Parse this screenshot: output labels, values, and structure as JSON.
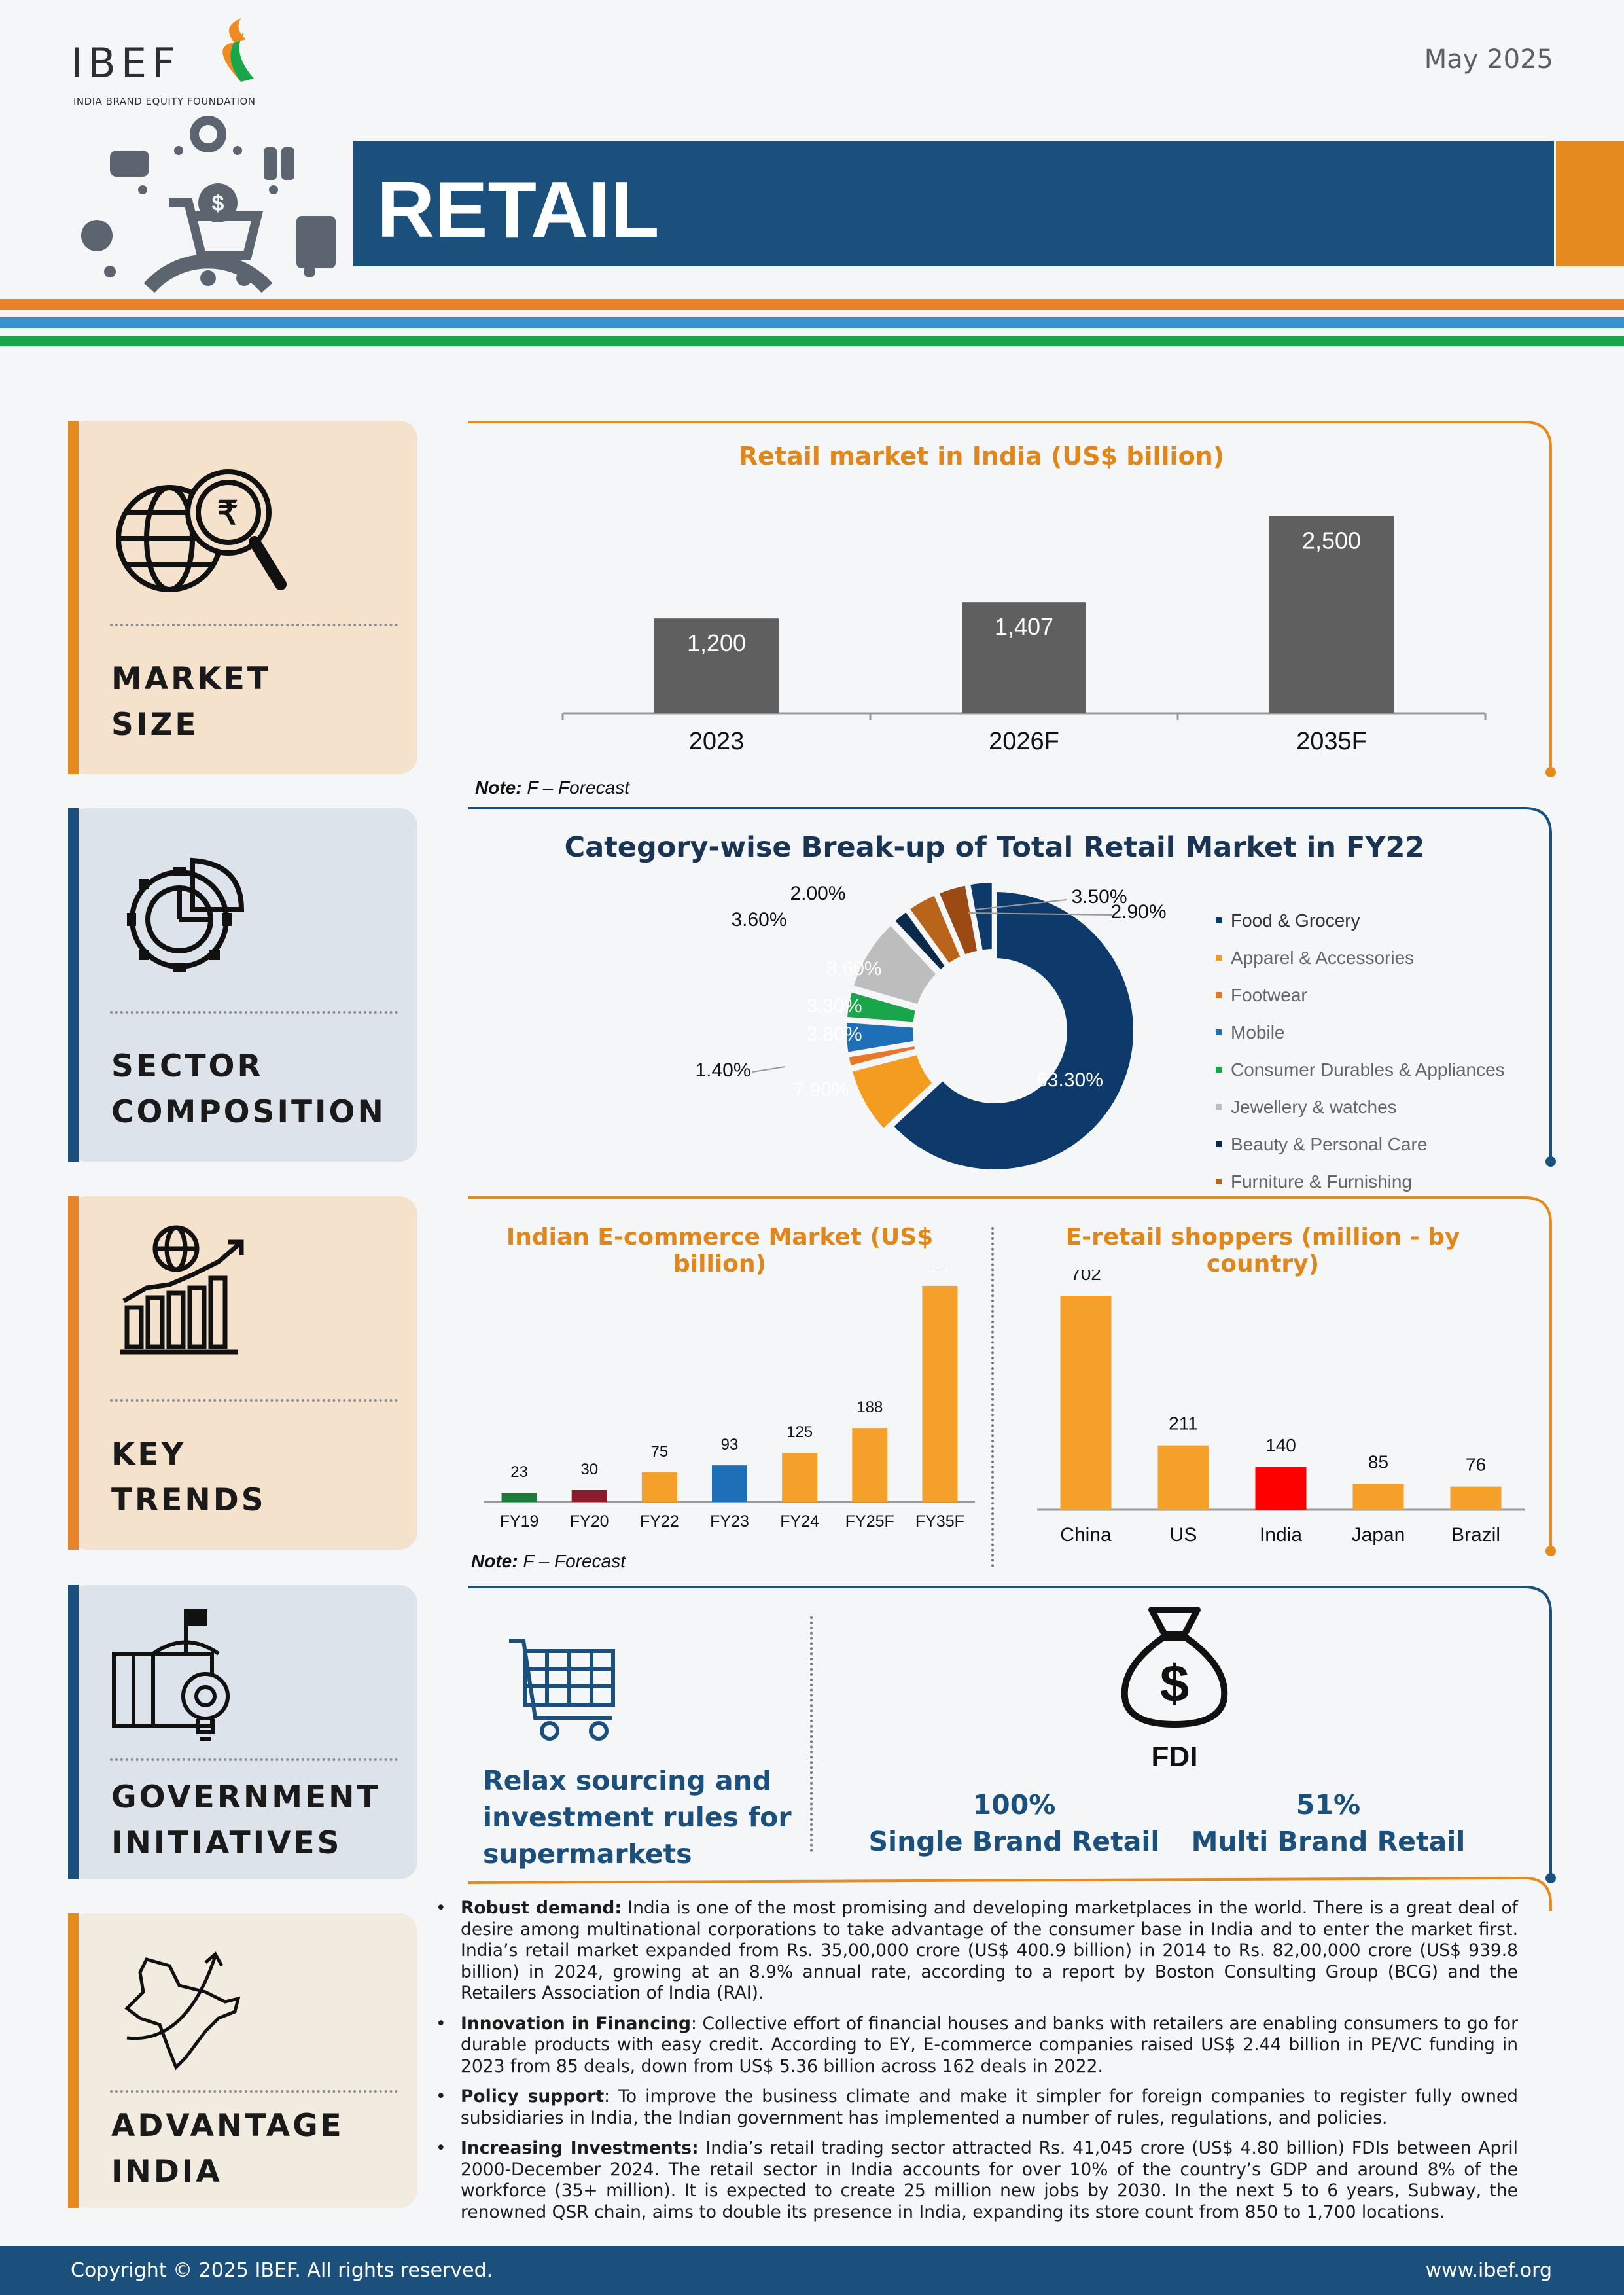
{
  "header": {
    "logo_text": "IBEF",
    "logo_subtitle": "INDIA BRAND EQUITY FOUNDATION",
    "date": "May 2025",
    "title": "RETAIL"
  },
  "sections": {
    "market_size": {
      "label_line1": "MARKET",
      "label_line2": "SIZE"
    },
    "sector_composition": {
      "label_line1": "SECTOR",
      "label_line2": "COMPOSITION"
    },
    "key_trends": {
      "label_line1": "KEY",
      "label_line2": "TRENDS"
    },
    "government_initiatives": {
      "label_line1": "GOVERNMENT",
      "label_line2": "INITIATIVES"
    },
    "advantage_india": {
      "label_line1": "ADVANTAGE",
      "label_line2": "INDIA"
    }
  },
  "notes": {
    "market_note_bold": "Note:",
    "market_note_text": "F – Forecast",
    "ecommerce_note_bold": "Note:",
    "ecommerce_note_text": "F – Forecast"
  },
  "chart_data": [
    {
      "type": "bar",
      "title": "Retail market in India (US$ billion)",
      "categories": [
        "2023",
        "2026F",
        "2035F"
      ],
      "values": [
        1200,
        1407,
        2500
      ],
      "value_labels": [
        "1,200",
        "1,407",
        "2,500"
      ],
      "colors": [
        "#5f5f5f",
        "#5f5f5f",
        "#5f5f5f"
      ],
      "ylim": [
        0,
        2900
      ]
    },
    {
      "type": "pie",
      "title": "Category-wise Break-up of Total Retail Market in FY22",
      "legend": [
        "Food & Grocery",
        "Apparel & Accessories",
        "Footwear",
        "Mobile",
        "Consumer Durables & Appliances",
        "Jewellery & watches",
        "Beauty & Personal Care",
        "Furniture & Furnishing"
      ],
      "slices": [
        {
          "name": "Food & Grocery",
          "value": 63.3,
          "label": "63.30%",
          "color": "#0d3a6b"
        },
        {
          "name": "Apparel & Accessories",
          "value": 7.9,
          "label": "7.90%",
          "color": "#f39c1f"
        },
        {
          "name": "Footwear",
          "value": 1.4,
          "label": "1.40%",
          "color": "#e8772e"
        },
        {
          "name": "Mobile",
          "value": 3.8,
          "label": "3.80%",
          "color": "#1f6fb8"
        },
        {
          "name": "Consumer Durables & Appliances",
          "value": 3.3,
          "label": "3.30%",
          "color": "#19a64a"
        },
        {
          "name": "Jewellery & watches",
          "value": 8.6,
          "label": "8.60%",
          "color": "#bdbdbd"
        },
        {
          "name": "Beauty & Personal Care",
          "value": 2.0,
          "label": "2.00%",
          "color": "#0b2a4a"
        },
        {
          "name": "Furniture & Furnishing",
          "value": 3.6,
          "label": "3.60%",
          "color": "#b8641a"
        },
        {
          "name": "",
          "value": 3.5,
          "label": "3.50%",
          "color": "#9a4a12"
        },
        {
          "name": "",
          "value": 2.9,
          "label": "2.90%",
          "color": "#0d3a6b"
        }
      ]
    },
    {
      "type": "bar",
      "title": "Indian E-commerce Market (US$ billion)",
      "categories": [
        "FY19",
        "FY20",
        "FY22",
        "FY23",
        "FY24",
        "FY25F",
        "FY35F"
      ],
      "values": [
        23,
        30,
        75,
        93,
        125,
        188,
        550
      ],
      "colors": [
        "#1e7a3a",
        "#8b1a2b",
        "#f5a02a",
        "#1f6fb8",
        "#f5a02a",
        "#f5a02a",
        "#f5a02a"
      ],
      "ylim": [
        0,
        600
      ]
    },
    {
      "type": "bar",
      "title": "E-retail shoppers (million - by country)",
      "categories": [
        "China",
        "US",
        "India",
        "Japan",
        "Brazil"
      ],
      "values": [
        702,
        211,
        140,
        85,
        76
      ],
      "colors": [
        "#f5a02a",
        "#f5a02a",
        "#ff0000",
        "#f5a02a",
        "#f5a02a"
      ],
      "ylim": [
        0,
        800
      ]
    }
  ],
  "government": {
    "left_text": [
      "Relax sourcing and",
      "investment rules for",
      "supermarkets"
    ],
    "fdi_label": "FDI",
    "single_pct": "100%",
    "single_label": "Single Brand Retail",
    "multi_pct": "51%",
    "multi_label": "Multi Brand Retail"
  },
  "advantage": [
    {
      "bold": "Robust demand:",
      "text": " India is one of the most promising and developing marketplaces in the world. There is a great deal of desire among multinational corporations to take advantage of the consumer base in India and to enter the market first. India’s retail market expanded from Rs. 35,00,000 crore (US$ 400.9 billion) in 2014 to Rs. 82,00,000 crore (US$ 939.8 billion) in 2024, growing at an 8.9% annual rate, according to a report by Boston Consulting Group (BCG) and the Retailers Association of India (RAI)."
    },
    {
      "bold": "Innovation in Financing",
      "text": ": Collective effort of financial houses and banks with retailers are enabling consumers to go for durable products with easy credit. According to EY, E-commerce companies raised US$ 2.44 billion in PE/VC funding in 2023 from 85 deals, down from US$ 5.36 billion across 162 deals in 2022."
    },
    {
      "bold": "Policy support",
      "text": ": To improve the business climate and make it simpler for foreign companies to register fully owned subsidiaries in India, the Indian government has implemented a number of rules, regulations, and policies."
    },
    {
      "bold": "Increasing Investments:",
      "text": " India’s retail trading sector attracted Rs. 41,045 crore (US$ 4.80 billion) FDIs between April 2000-December 2024. The retail sector in India accounts for over 10% of the country’s GDP and around 8% of the workforce (35+ million). It is expected to create 25 million new jobs by 2030. In the next 5 to 6 years, Subway, the renowned QSR chain, aims to double its presence in India, expanding its store count from 850 to 1,700 locations."
    }
  ],
  "footer": {
    "copyright": "Copyright © 2025 IBEF. All rights reserved.",
    "website": "www.ibef.org"
  },
  "colors": {
    "navy": "#1b4f7c",
    "orange": "#e58a1e",
    "blue_stripe": "#3a8fd0",
    "green_stripe": "#19a64a"
  }
}
